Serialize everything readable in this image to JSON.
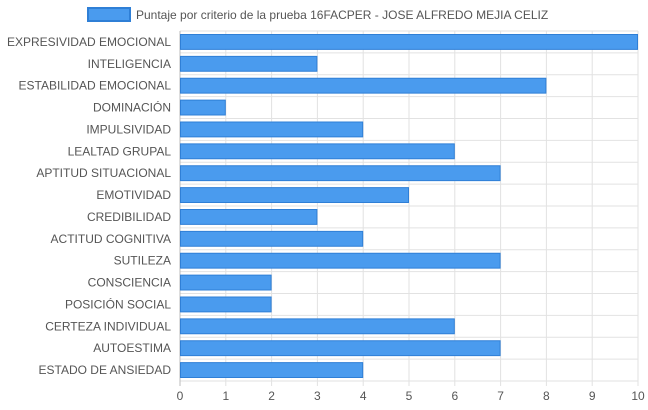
{
  "chart_data": {
    "type": "bar",
    "orientation": "horizontal",
    "legend": {
      "label": "Puntaje por criterio de la prueba 16FACPER - JOSE ALFREDO MEJIA CELIZ",
      "position": "top"
    },
    "categories": [
      "EXPRESIVIDAD EMOCIONAL",
      "INTELIGENCIA",
      "ESTABILIDAD EMOCIONAL",
      "DOMINACIÓN",
      "IMPULSIVIDAD",
      "LEALTAD GRUPAL",
      "APTITUD SITUACIONAL",
      "EMOTIVIDAD",
      "CREDIBILIDAD",
      "ACTITUD COGNITIVA",
      "SUTILEZA",
      "CONSCIENCIA",
      "POSICIÓN SOCIAL",
      "CERTEZA INDIVIDUAL",
      "AUTOESTIMA",
      "ESTADO DE ANSIEDAD"
    ],
    "values": [
      10,
      3,
      8,
      1,
      4,
      6,
      7,
      5,
      3,
      4,
      7,
      2,
      2,
      6,
      7,
      4
    ],
    "xlim": [
      0,
      10
    ],
    "x_ticks": [
      0,
      1,
      2,
      3,
      4,
      5,
      6,
      7,
      8,
      9,
      10
    ],
    "grid": true,
    "colors": {
      "bar_fill": "#4a9bee",
      "bar_stroke": "#2f7fd6",
      "grid": "#e2e2e2",
      "axis": "#bbbbbb",
      "text": "#555555"
    }
  }
}
